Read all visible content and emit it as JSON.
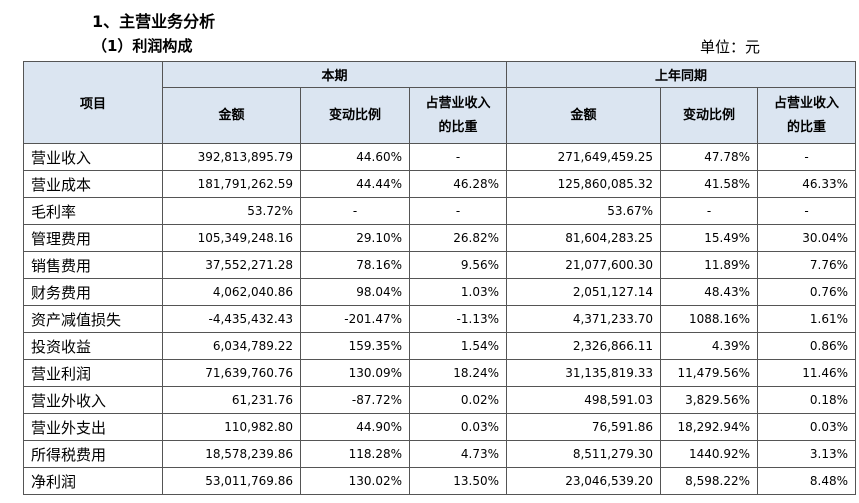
{
  "header": {
    "section_title": "1、主营业务分析",
    "subsection_title": "（1）利润构成",
    "unit": "单位：元"
  },
  "table": {
    "item_header": "项目",
    "group_headers": [
      "本期",
      "上年同期"
    ],
    "columns": [
      "金额",
      "变动比例",
      "占营业收入\n的比重",
      "金额",
      "变动比例",
      "占营业收入\n的比重"
    ],
    "rows": [
      [
        "营业收入",
        "392,813,895.79",
        "44.60%",
        "-",
        "271,649,459.25",
        "47.78%",
        "-"
      ],
      [
        "营业成本",
        "181,791,262.59",
        "44.44%",
        "46.28%",
        "125,860,085.32",
        "41.58%",
        "46.33%"
      ],
      [
        "毛利率",
        "53.72%",
        "-",
        "-",
        "53.67%",
        "-",
        "-"
      ],
      [
        "管理费用",
        "105,349,248.16",
        "29.10%",
        "26.82%",
        "81,604,283.25",
        "15.49%",
        "30.04%"
      ],
      [
        "销售费用",
        "37,552,271.28",
        "78.16%",
        "9.56%",
        "21,077,600.30",
        "11.89%",
        "7.76%"
      ],
      [
        "财务费用",
        "4,062,040.86",
        "98.04%",
        "1.03%",
        "2,051,127.14",
        "48.43%",
        "0.76%"
      ],
      [
        "资产减值损失",
        "-4,435,432.43",
        "-201.47%",
        "-1.13%",
        "4,371,233.70",
        "1088.16%",
        "1.61%"
      ],
      [
        "投资收益",
        "6,034,789.22",
        "159.35%",
        "1.54%",
        "2,326,866.11",
        "4.39%",
        "0.86%"
      ],
      [
        "营业利润",
        "71,639,760.76",
        "130.09%",
        "18.24%",
        "31,135,819.33",
        "11,479.56%",
        "11.46%"
      ],
      [
        "营业外收入",
        "61,231.76",
        "-87.72%",
        "0.02%",
        "498,591.03",
        "3,829.56%",
        "0.18%"
      ],
      [
        "营业外支出",
        "110,982.80",
        "44.90%",
        "0.03%",
        "76,591.86",
        "18,292.94%",
        "0.03%"
      ],
      [
        "所得税费用",
        "18,578,239.86",
        "118.28%",
        "4.73%",
        "8,511,279.30",
        "1440.92%",
        "3.13%"
      ],
      [
        "净利润",
        "53,011,769.86",
        "130.02%",
        "13.50%",
        "23,046,539.20",
        "8,598.22%",
        "8.48%"
      ]
    ]
  }
}
